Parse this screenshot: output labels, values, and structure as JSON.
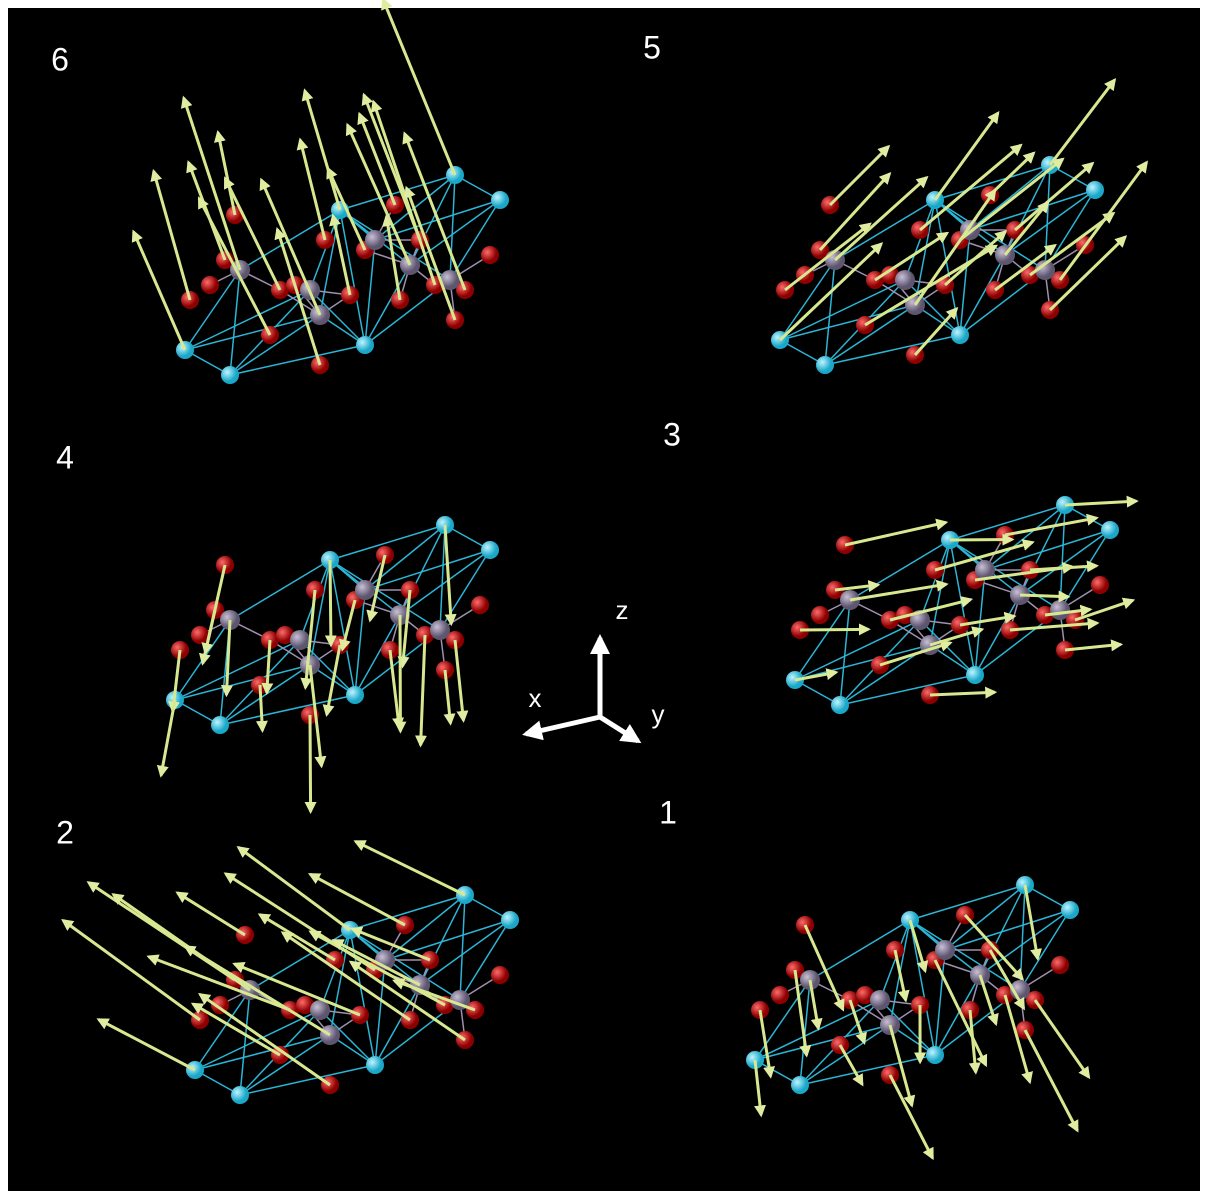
{
  "panels": [
    {
      "label": "6"
    },
    {
      "label": "5"
    },
    {
      "label": "4"
    },
    {
      "label": "3"
    },
    {
      "label": "2"
    },
    {
      "label": "1"
    }
  ],
  "axes": {
    "z": "z",
    "x": "x",
    "y": "y"
  }
}
